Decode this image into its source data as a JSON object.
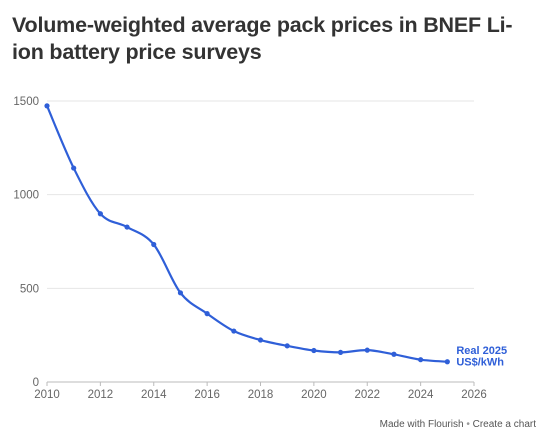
{
  "chart_data": {
    "type": "line",
    "title": "Volume-weighted average pack prices in BNEF Li-ion battery price surveys",
    "xlabel": "",
    "ylabel": "",
    "x": [
      2010,
      2011,
      2012,
      2013,
      2014,
      2015,
      2016,
      2017,
      2018,
      2019,
      2020,
      2021,
      2022,
      2023,
      2024,
      2025
    ],
    "series": [
      {
        "name": "Real 2025 US$/kWh",
        "label_lines": [
          "Real 2025",
          "US$/kWh"
        ],
        "color": "#2f5fd8",
        "values": [
          1474,
          1142,
          898,
          827,
          734,
          476,
          365,
          272,
          224,
          193,
          168,
          158,
          170,
          148,
          119,
          108
        ]
      }
    ],
    "xlim": [
      2010,
      2026
    ],
    "ylim": [
      0,
      1500
    ],
    "x_ticks": [
      "2010",
      "2012",
      "2014",
      "2016",
      "2018",
      "2020",
      "2022",
      "2024",
      "2026"
    ],
    "y_ticks": [
      "0",
      "500",
      "1000",
      "1500"
    ],
    "grid": true,
    "legend": "direct label at line end"
  },
  "footer": {
    "made_with": "Made with Flourish",
    "separator": "•",
    "create_link": "Create a chart"
  },
  "colors": {
    "line": "#2f5fd8",
    "grid": "#e6e6e6",
    "text": "#333333"
  }
}
